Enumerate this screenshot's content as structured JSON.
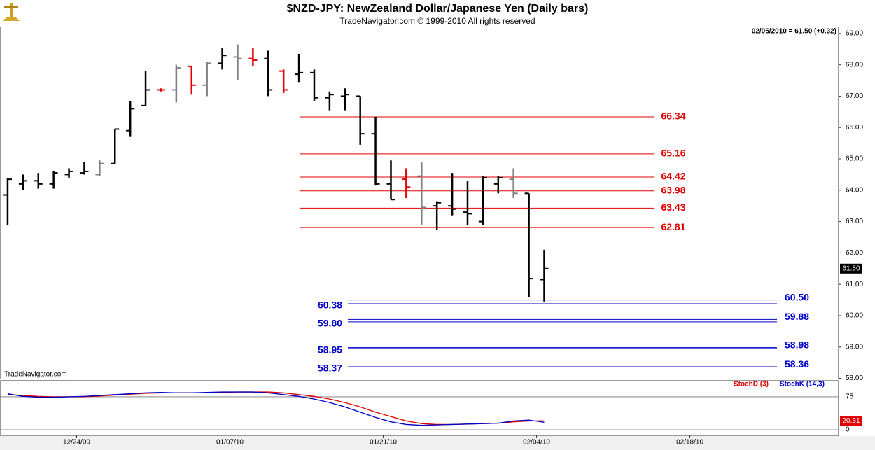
{
  "chart_data": [
    {
      "type": "ohlc",
      "title": "$NZD-JPY:  NewZealand Dollar/Japanese Yen  (Daily bars)",
      "subtitle": "TradeNavigator.com © 1999-2010 All rights reserved",
      "header_note": "02/05/2010 = 61.50 (+0.32)",
      "source": "TradeNavigator.com",
      "price_tag": "61.50",
      "xlim": [
        -0.5,
        54.2
      ],
      "xticks": [
        {
          "value": 4.5,
          "label": "12/24/09"
        },
        {
          "value": 14.5,
          "label": "01/07/10"
        },
        {
          "value": 24.5,
          "label": "01/21/10"
        },
        {
          "value": 34.5,
          "label": "02/04/10"
        },
        {
          "value": 44.5,
          "label": "02/18/10"
        }
      ],
      "ylim": [
        57.99,
        69.22
      ],
      "yticks": [
        {
          "value": 58,
          "label": "58.00"
        },
        {
          "value": 59,
          "label": "59.00"
        },
        {
          "value": 60,
          "label": "60.00"
        },
        {
          "value": 61,
          "label": "61.00"
        },
        {
          "value": 62,
          "label": "62.00"
        },
        {
          "value": 63,
          "label": "63.00"
        },
        {
          "value": 64,
          "label": "64.00"
        },
        {
          "value": 65,
          "label": "65.00"
        },
        {
          "value": 66,
          "label": "66.00"
        },
        {
          "value": 67,
          "label": "67.00"
        },
        {
          "value": 68,
          "label": "68.00"
        },
        {
          "value": 69,
          "label": "69.00"
        }
      ],
      "open": [
        63.85,
        64.2,
        64.3,
        64.2,
        64.5,
        64.55,
        64.5,
        64.85,
        65.9,
        66.7,
        67.2,
        67.2,
        67.95,
        67.35,
        68.05,
        68.25,
        68.2,
        68.2,
        67.8,
        67.7,
        67.75,
        66.95,
        67.0,
        67.0,
        65.8,
        64.2,
        64.35,
        64.45,
        63.5,
        63.5,
        63.3,
        63.0,
        64.2,
        64.35,
        63.9,
        61.15
      ],
      "high": [
        64.38,
        64.5,
        64.55,
        64.6,
        64.7,
        64.9,
        64.95,
        65.95,
        66.85,
        67.8,
        67.25,
        68.0,
        67.95,
        68.1,
        68.55,
        68.65,
        68.55,
        68.45,
        67.85,
        68.35,
        67.85,
        67.15,
        67.25,
        67.0,
        66.34,
        64.95,
        64.7,
        64.9,
        63.65,
        64.55,
        64.3,
        64.45,
        64.45,
        64.7,
        63.9,
        62.1
      ],
      "low": [
        62.88,
        64.0,
        64.05,
        64.05,
        64.4,
        64.5,
        64.45,
        64.85,
        65.7,
        66.7,
        67.15,
        66.8,
        67.05,
        67.0,
        67.85,
        67.5,
        67.95,
        67.0,
        67.1,
        67.45,
        66.85,
        66.55,
        66.55,
        65.45,
        64.15,
        63.7,
        63.75,
        62.9,
        62.75,
        63.2,
        62.9,
        62.9,
        63.9,
        63.75,
        60.6,
        60.45
      ],
      "close": [
        64.35,
        64.3,
        64.2,
        64.55,
        64.6,
        64.6,
        64.85,
        65.95,
        66.6,
        67.2,
        67.2,
        67.9,
        67.35,
        68.05,
        68.3,
        68.2,
        68.15,
        67.2,
        67.2,
        67.75,
        66.95,
        67.05,
        67.05,
        65.8,
        64.2,
        63.7,
        64.1,
        63.45,
        63.6,
        63.4,
        63.25,
        64.4,
        64.4,
        63.9,
        61.18,
        61.5
      ],
      "colors": [
        "#000000",
        "#000000",
        "#000000",
        "#000000",
        "#000000",
        "#000000",
        "#808080",
        "#000000",
        "#000000",
        "#000000",
        "#e00000",
        "#808080",
        "#e00000",
        "#808080",
        "#000000",
        "#808080",
        "#e00000",
        "#000000",
        "#e00000",
        "#000000",
        "#000000",
        "#000000",
        "#000000",
        "#000000",
        "#000000",
        "#000000",
        "#e00000",
        "#808080",
        "#000000",
        "#000000",
        "#000000",
        "#000000",
        "#000000",
        "#808080",
        "#000000",
        "#000000"
      ],
      "resistance": {
        "color": "#e00000",
        "values": [
          66.34,
          65.16,
          64.42,
          63.98,
          63.43,
          62.81
        ]
      },
      "support_left": {
        "color": "#0000c8",
        "values": [
          60.38,
          59.8,
          58.95,
          58.37
        ],
        "value_labels": [
          "60.38",
          "59.80",
          "58.95",
          "58.37"
        ]
      },
      "support_right": {
        "color": "#0000c8",
        "values": [
          60.5,
          59.88,
          58.98,
          58.36
        ],
        "value_labels": [
          "60.50",
          "59.88",
          "58.98",
          "58.36"
        ]
      }
    },
    {
      "type": "line",
      "ylim": [
        -12.8,
        110
      ],
      "yticks": [
        0,
        75
      ],
      "series": [
        {
          "name": "StochD (3)",
          "color": "#e00000",
          "values": [
            80,
            78,
            76,
            75,
            75,
            75,
            77,
            79,
            81,
            83,
            84,
            84,
            84,
            84,
            85,
            86,
            86,
            86,
            84,
            80,
            76,
            70,
            62,
            52,
            40,
            30,
            20,
            14,
            12,
            12,
            13,
            14,
            15,
            18,
            20,
            20.31
          ]
        },
        {
          "name": "StochK (14,3)",
          "color": "#0000c8",
          "values": [
            82,
            76,
            74,
            74,
            75,
            76,
            78,
            80,
            82,
            84,
            85,
            84,
            84,
            85,
            86,
            86,
            86,
            84,
            80,
            76,
            70,
            62,
            52,
            40,
            28,
            18,
            12,
            10,
            11,
            12,
            13,
            14,
            15,
            20,
            22,
            17
          ]
        }
      ]
    }
  ]
}
